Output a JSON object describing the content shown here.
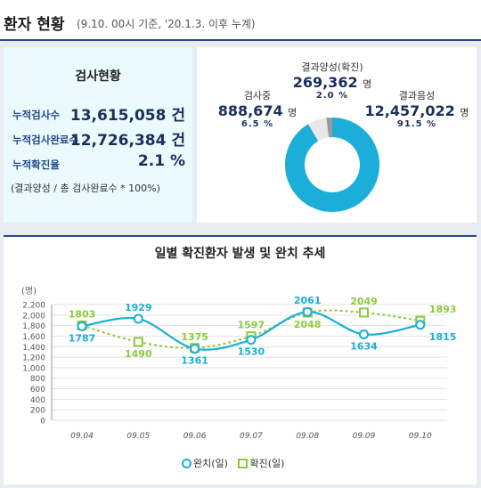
{
  "header": {
    "title": "환자 현황",
    "subtitle": "(9.10. 00시 기준, '20.1.3. 이후 누계)"
  },
  "stats": {
    "title": "검사현황",
    "rows": [
      {
        "label": "누적검사수",
        "value": "13,615,058 건"
      },
      {
        "label": "누적검사완료수",
        "value": "12,726,384 건"
      },
      {
        "label": "누적확진율",
        "value": "2.1 %"
      }
    ],
    "note": "(결과양성 / 총 검사완료수 * 100%)"
  },
  "donut": {
    "testing": {
      "caption": "검사중",
      "value": "888,674",
      "unit": "명",
      "pct": "6.5 %"
    },
    "positive": {
      "caption": "결과양성(확진)",
      "value": "269,362",
      "unit": "명",
      "pct": "2.0 %"
    },
    "negative": {
      "caption": "결과음성",
      "value": "12,457,022",
      "unit": "명",
      "pct": "91.5 %"
    },
    "colors": {
      "testing": "#e8e8e8",
      "positive": "#9a9a9a",
      "negative": "#1aaed8"
    }
  },
  "chart_title": "일별 확진환자 발생 및 완치 추세",
  "chart_data": {
    "type": "line",
    "categories": [
      "09.04",
      "09.05",
      "09.06",
      "09.07",
      "09.08",
      "09.09",
      "09.10"
    ],
    "series": [
      {
        "name": "완치(일)",
        "values": [
          1787,
          1929,
          1361,
          1530,
          2061,
          1634,
          1815
        ],
        "color": "#1aaed8",
        "marker": "circle"
      },
      {
        "name": "확진(일)",
        "values": [
          1803,
          1490,
          1375,
          1597,
          2048,
          2049,
          1893
        ],
        "color": "#8ccb3a",
        "marker": "square"
      }
    ],
    "ylabel": "(명)",
    "ylim": [
      0,
      2200
    ],
    "yticks": [
      0,
      200,
      400,
      600,
      800,
      1000,
      1200,
      1400,
      1600,
      1800,
      2000,
      2200
    ],
    "grid": true,
    "legend": "bottom-center"
  },
  "legend": {
    "recovered": "완치(일)",
    "confirmed": "확진(일)"
  }
}
